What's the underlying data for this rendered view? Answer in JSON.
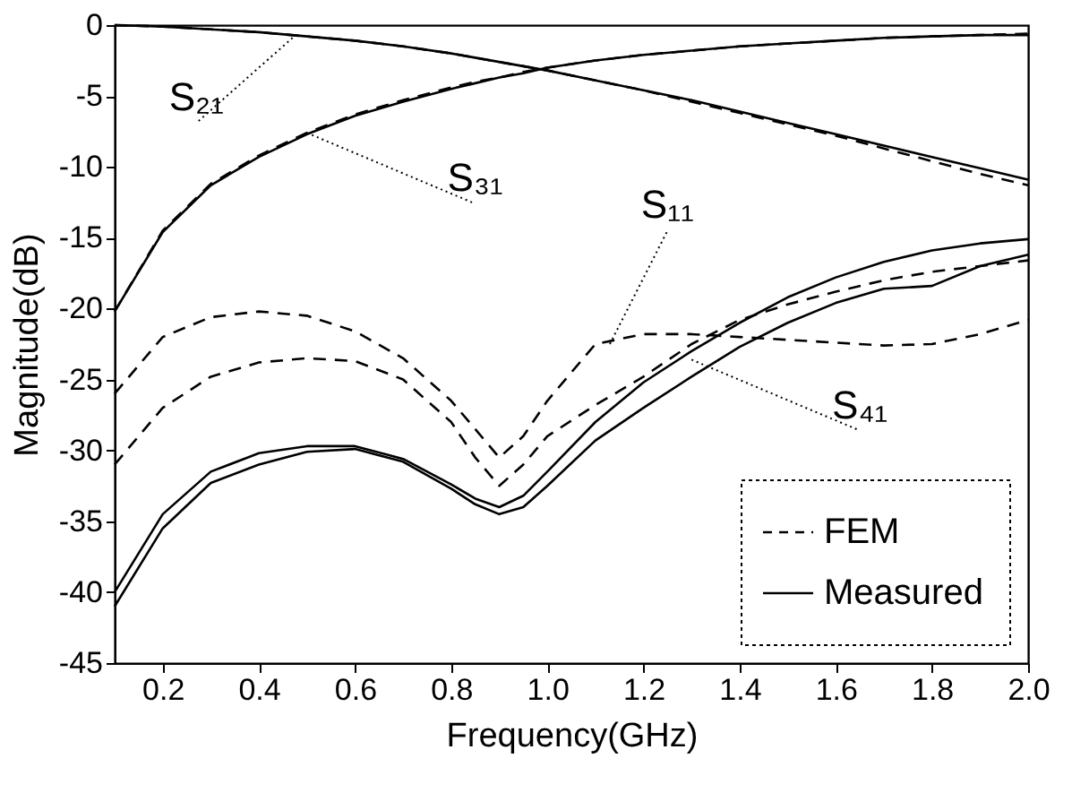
{
  "chart_data": {
    "type": "line",
    "xlabel": "Frequency(GHz)",
    "ylabel": "Magnitude(dB)",
    "xlim": [
      0.1,
      2.0
    ],
    "ylim": [
      -45,
      0
    ],
    "xticks": [
      0.2,
      0.4,
      0.6,
      0.8,
      {
        "value": 1.0,
        "label": "1.0"
      },
      1.2,
      1.4,
      1.6,
      1.8,
      {
        "value": 2.0,
        "label": "2.0"
      }
    ],
    "yticks": [
      0,
      -5,
      -10,
      -15,
      -20,
      -25,
      -30,
      -35,
      -40,
      -45
    ],
    "grid": false,
    "legend": "bottom right",
    "marker": "none",
    "x": [
      0.1,
      0.2,
      0.3,
      0.4,
      0.5,
      0.6,
      0.7,
      0.8,
      0.85,
      0.9,
      0.95,
      1.0,
      1.1,
      1.2,
      1.3,
      1.4,
      1.5,
      1.6,
      1.7,
      1.8,
      1.9,
      2.0
    ],
    "series": [
      {
        "name": "FEM",
        "color": "#000000",
        "line_style": "dashed",
        "values": [
          0,
          -0.1,
          -0.3,
          -0.5,
          -0.8,
          -1.1,
          -1.5,
          -2.0,
          -2.3,
          -2.6,
          -2.9,
          -3.2,
          -3.9,
          -4.6,
          -5.4,
          -6.2,
          -7.0,
          -7.8,
          -8.7,
          -9.6,
          -10.5,
          -11.3
        ]
      },
      {
        "name": "Measured",
        "color": "#000000",
        "line_style": "solid",
        "values": [
          0,
          -0.1,
          -0.3,
          -0.5,
          -0.8,
          -1.1,
          -1.5,
          -2.0,
          -2.3,
          -2.6,
          -2.9,
          -3.2,
          -3.9,
          -4.6,
          -5.3,
          -6.1,
          -6.9,
          -7.7,
          -8.5,
          -9.3,
          -10.1,
          -10.9
        ]
      },
      {
        "color": "#000000",
        "line_style": "dashed",
        "values": [
          -20.2,
          -14.5,
          -11.2,
          -9.2,
          -7.6,
          -6.3,
          -5.3,
          -4.4,
          -4.0,
          -3.7,
          -3.3,
          -3.0,
          -2.5,
          -2.1,
          -1.8,
          -1.5,
          -1.3,
          -1.1,
          -0.9,
          -0.8,
          -0.7,
          -0.6
        ]
      },
      {
        "color": "#000000",
        "line_style": "solid",
        "values": [
          -20.2,
          -14.6,
          -11.3,
          -9.3,
          -7.7,
          -6.4,
          -5.4,
          -4.5,
          -4.1,
          -3.7,
          -3.4,
          -3.0,
          -2.5,
          -2.1,
          -1.8,
          -1.5,
          -1.3,
          -1.1,
          -0.9,
          -0.8,
          -0.7,
          -0.7
        ]
      },
      {
        "color": "#000000",
        "line_style": "dashed",
        "values": [
          -26,
          -22,
          -20.6,
          -20.2,
          -20.5,
          -21.6,
          -23.5,
          -26.5,
          -28.5,
          -30.5,
          -29,
          -26.5,
          -22.5,
          -21.8,
          -21.8,
          -22,
          -22.2,
          -22.4,
          -22.6,
          -22.5,
          -21.8,
          -20.8
        ]
      },
      {
        "color": "#000000",
        "line_style": "dashed",
        "values": [
          -31,
          -27,
          -24.8,
          -23.8,
          -23.5,
          -23.7,
          -25,
          -28,
          -30.5,
          -32.5,
          -31,
          -29,
          -26.8,
          -24.8,
          -22.5,
          -20.8,
          -19.7,
          -18.8,
          -18,
          -17.4,
          -17,
          -16.6
        ]
      },
      {
        "color": "#000000",
        "line_style": "solid",
        "values": [
          -40,
          -34.5,
          -31.5,
          -30.2,
          -29.7,
          -29.7,
          -30.6,
          -32.4,
          -33.4,
          -34,
          -33.2,
          -31.5,
          -28,
          -25.2,
          -23,
          -21,
          -19.2,
          -17.8,
          -16.7,
          -15.9,
          -15.4,
          -15.1
        ]
      },
      {
        "color": "#000000",
        "line_style": "solid",
        "values": [
          -41,
          -35.5,
          -32.3,
          -31,
          -30.1,
          -29.9,
          -30.8,
          -32.7,
          -33.8,
          -34.5,
          -34,
          -32.5,
          -29.3,
          -27,
          -24.8,
          -22.7,
          -21,
          -19.6,
          -18.6,
          -18.4,
          -17,
          -16.2
        ]
      }
    ],
    "annotations": [
      {
        "text": "S₂₁",
        "x": 0.47,
        "y": -0.9
      },
      {
        "text": "S₃₁",
        "x": 0.5,
        "y": -7.6
      },
      {
        "text": "S₁₁",
        "x": 1.13,
        "y": -22.5
      },
      {
        "text": "S₄₁",
        "x": 1.3,
        "y": -23.6
      }
    ]
  }
}
